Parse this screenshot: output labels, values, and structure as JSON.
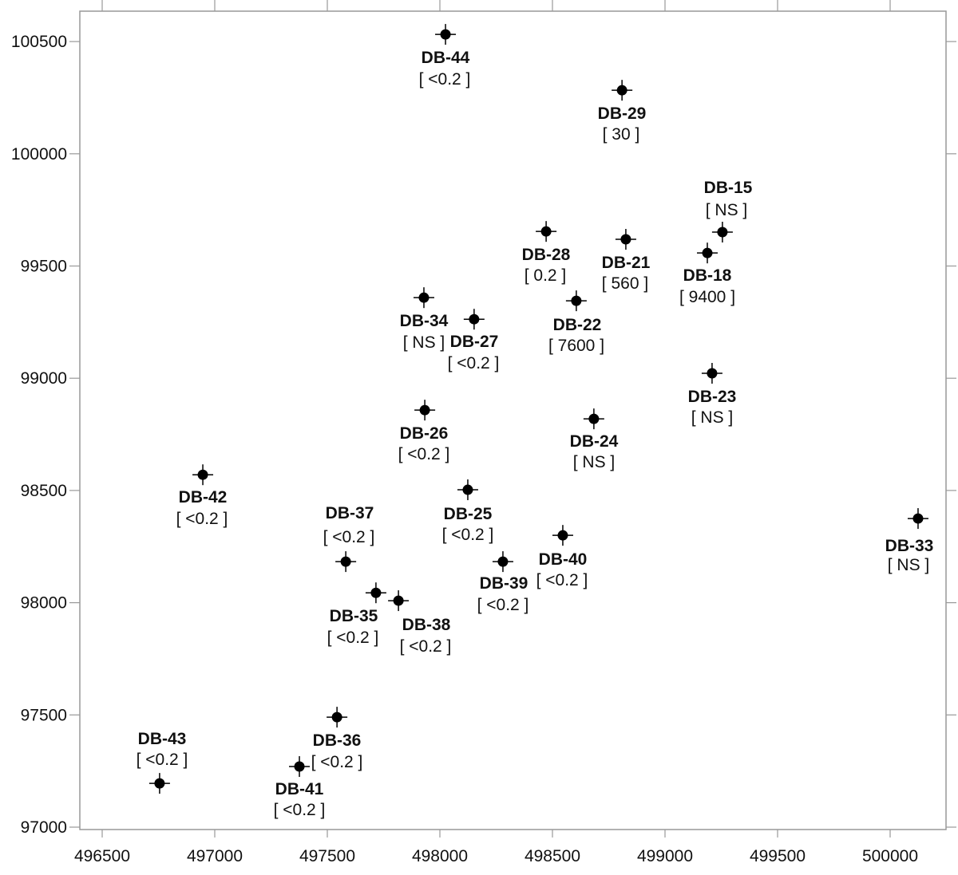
{
  "chart_data": {
    "type": "scatter",
    "title": "",
    "xlabel": "",
    "ylabel": "",
    "xlim": [
      496400,
      500250
    ],
    "ylim": [
      97000,
      100640
    ],
    "x_ticks": [
      "496500",
      "497000",
      "497500",
      "498000",
      "498500",
      "499000",
      "499500",
      "500000"
    ],
    "y_ticks": [
      "97000",
      "97500",
      "98000",
      "98500",
      "99000",
      "99500",
      "100000",
      "100500"
    ],
    "grid": false,
    "marker_color": "#000000",
    "points": [
      {
        "name": "DB-44",
        "x": 498025,
        "y": 100532,
        "label": "[ <0.2 ]"
      },
      {
        "name": "DB-29",
        "x": 498809,
        "y": 100283,
        "label": "[ 30 ]"
      },
      {
        "name": "DB-15",
        "x": 499255,
        "y": 99651,
        "label": "[ NS ]"
      },
      {
        "name": "DB-18",
        "x": 499188,
        "y": 99558,
        "label": "[ 9400 ]"
      },
      {
        "name": "DB-21",
        "x": 498826,
        "y": 99619,
        "label": "[ 560 ]"
      },
      {
        "name": "DB-28",
        "x": 498472,
        "y": 99654,
        "label": "[ 0.2 ]"
      },
      {
        "name": "DB-22",
        "x": 498606,
        "y": 99345,
        "label": "[ 7600 ]"
      },
      {
        "name": "DB-34",
        "x": 497929,
        "y": 99359,
        "label": "[ NS ]"
      },
      {
        "name": "DB-27",
        "x": 498152,
        "y": 99263,
        "label": "[ <0.2 ]"
      },
      {
        "name": "DB-23",
        "x": 499209,
        "y": 99022,
        "label": "[ NS ]"
      },
      {
        "name": "DB-26",
        "x": 497933,
        "y": 98858,
        "label": "[ <0.2 ]"
      },
      {
        "name": "DB-24",
        "x": 498684,
        "y": 98819,
        "label": "[ NS ]"
      },
      {
        "name": "DB-42",
        "x": 496947,
        "y": 98570,
        "label": "[ <0.2 ]"
      },
      {
        "name": "DB-25",
        "x": 498124,
        "y": 98503,
        "label": "[ <0.2 ]"
      },
      {
        "name": "DB-33",
        "x": 500124,
        "y": 98375,
        "label": "[ NS ]"
      },
      {
        "name": "DB-40",
        "x": 498546,
        "y": 98300,
        "label": "[ <0.2 ]"
      },
      {
        "name": "DB-37",
        "x": 497582,
        "y": 98183,
        "label": "[ <0.2 ]"
      },
      {
        "name": "DB-39",
        "x": 498280,
        "y": 98183,
        "label": "[ <0.2 ]"
      },
      {
        "name": "DB-35",
        "x": 497716,
        "y": 98044,
        "label": "[ <0.2 ]"
      },
      {
        "name": "DB-38",
        "x": 497816,
        "y": 98009,
        "label": "[ <0.2 ]"
      },
      {
        "name": "DB-36",
        "x": 497543,
        "y": 97490,
        "label": "[ <0.2 ]"
      },
      {
        "name": "DB-41",
        "x": 497376,
        "y": 97270,
        "label": "[ <0.2 ]"
      },
      {
        "name": "DB-43",
        "x": 496755,
        "y": 97195,
        "label": "[ <0.2 ]"
      }
    ]
  }
}
